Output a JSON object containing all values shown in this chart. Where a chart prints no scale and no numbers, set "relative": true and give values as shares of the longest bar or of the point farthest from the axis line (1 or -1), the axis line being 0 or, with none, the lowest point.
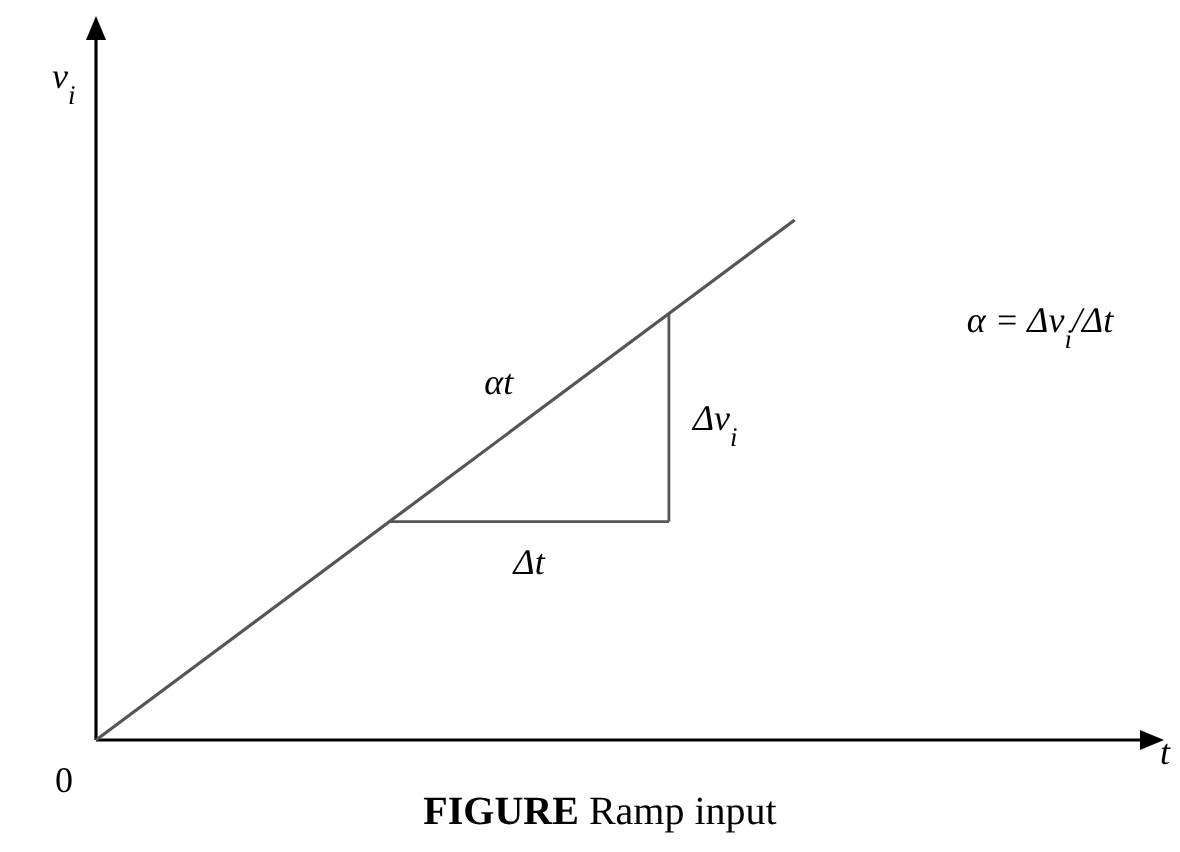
{
  "chart_data": {
    "type": "line",
    "title": "FIGURE Ramp input",
    "xlabel": "t",
    "ylabel": "v$_{i}$",
    "relative": true,
    "categories": [
      null,
      null,
      null,
      null
    ],
    "series": [
      {
        "color": "#555555",
        "values": [
          0,
          0.5,
          1,
          null
        ]
      }
    ],
    "annotations": [
      "0",
      "αt",
      "Δv$_{i}$",
      "Δt",
      "α = Δv$_{i}$/Δt"
    ]
  }
}
